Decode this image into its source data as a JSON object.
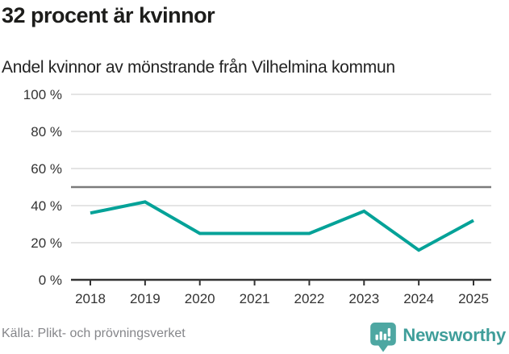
{
  "header": {
    "title": "32 procent är kvinnor",
    "subtitle": "Andel kvinnor av mönstrande från Vilhelmina kommun"
  },
  "chart_data": {
    "type": "line",
    "title": "32 procent är kvinnor",
    "subtitle": "Andel kvinnor av mönstrande från Vilhelmina kommun",
    "x": [
      2018,
      2019,
      2020,
      2021,
      2022,
      2023,
      2024,
      2025
    ],
    "series": [
      {
        "name": "Andel kvinnor av mönstrande",
        "values": [
          36,
          42,
          25,
          25,
          25,
          37,
          16,
          32
        ]
      }
    ],
    "unit": "%",
    "ylim": [
      0,
      100
    ],
    "yticks": [
      0,
      20,
      40,
      60,
      80,
      100
    ],
    "ytick_suffix": " %",
    "reference_line": 50,
    "grid": true,
    "legend": "none"
  },
  "footer": {
    "source": "Källa: Plikt- och prövningsverket",
    "brand": "Newsworthy"
  },
  "colors": {
    "line": "#04a298",
    "grid": "#e4e4e4",
    "reference": "#7b7b7b",
    "axis": "#333333",
    "tick_label": "#333333",
    "title": "#1d1d1b",
    "source_text": "#85868a",
    "brand_teal": "#3f9e9a",
    "logo_bg": "#4ea7a2"
  }
}
